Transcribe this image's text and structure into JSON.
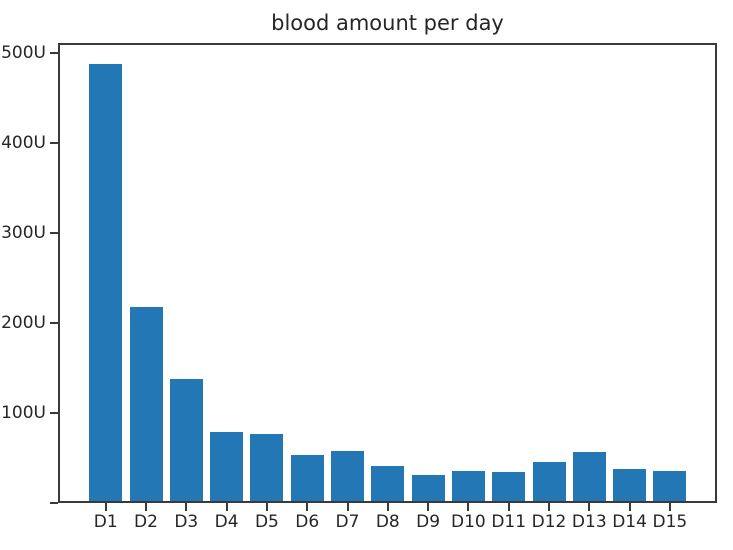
{
  "chart_data": {
    "type": "bar",
    "title": "blood amount per day",
    "categories": [
      "D1",
      "D2",
      "D3",
      "D4",
      "D5",
      "D6",
      "D7",
      "D8",
      "D9",
      "D10",
      "D11",
      "D12",
      "D13",
      "D14",
      "D15"
    ],
    "values": [
      485,
      216,
      136,
      77,
      74,
      51,
      56,
      39,
      29,
      33,
      32,
      43,
      54,
      35,
      33
    ],
    "unit": "U",
    "xlabel": "",
    "ylabel": "",
    "ylim": [
      0,
      511
    ],
    "yticks": [
      {
        "value": 0,
        "label": ""
      },
      {
        "value": 100,
        "label": "100U"
      },
      {
        "value": 200,
        "label": "200U"
      },
      {
        "value": 300,
        "label": "300U"
      },
      {
        "value": 400,
        "label": "400U"
      },
      {
        "value": 500,
        "label": "500U"
      }
    ],
    "grid": false,
    "legend": "none",
    "bar_color": "#2277b4",
    "spine_color": "#3a3a3a",
    "text_color": "#262626",
    "background_color": "#ffffff"
  }
}
